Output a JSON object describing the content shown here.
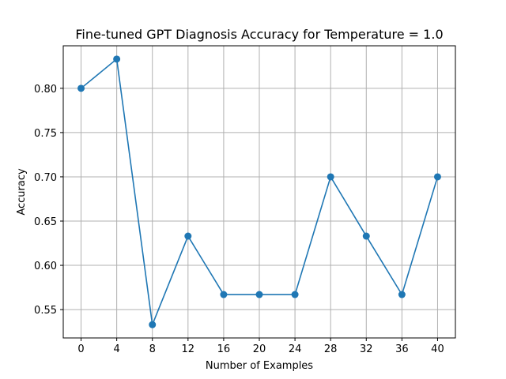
{
  "chart_data": {
    "type": "line",
    "title": "Fine-tuned GPT Diagnosis Accuracy for Temperature = 1.0",
    "xlabel": "Number of Examples",
    "ylabel": "Accuracy",
    "x": [
      0,
      4,
      8,
      12,
      16,
      20,
      24,
      28,
      32,
      36,
      40
    ],
    "series": [
      {
        "values": [
          0.8,
          0.833,
          0.533,
          0.633,
          0.567,
          0.567,
          0.567,
          0.7,
          0.633,
          0.567,
          0.7
        ]
      }
    ],
    "xticks": [
      "0",
      "4",
      "8",
      "12",
      "16",
      "20",
      "24",
      "28",
      "32",
      "36",
      "40"
    ],
    "yticks": [
      "0.55",
      "0.60",
      "0.65",
      "0.70",
      "0.75",
      "0.80"
    ],
    "xlim": [
      -2,
      42
    ],
    "ylim": [
      0.518,
      0.848
    ],
    "grid": true,
    "marker": "circle",
    "color": "#1f77b4"
  }
}
